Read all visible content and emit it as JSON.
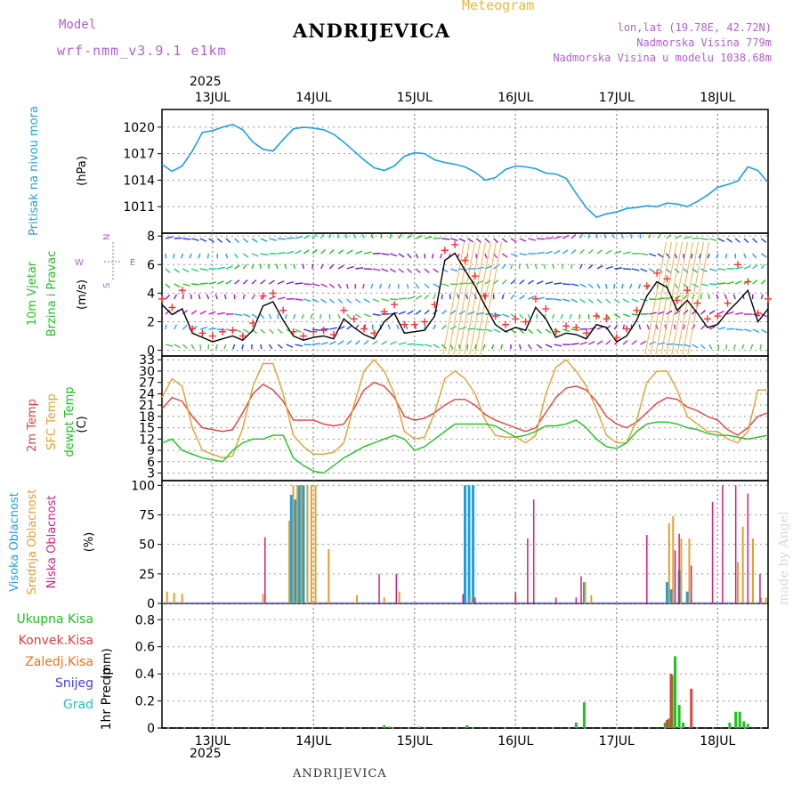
{
  "header": {
    "model_label": "Model",
    "model_name": "wrf-nmm_v3.9.1 e1km",
    "title": "ANDRIJEVICA",
    "subtitle": "Meteogram",
    "lonlat": "lon,lat (19.78E, 42.72N)",
    "altitude": "Nadmorska Visina 779m",
    "model_altitude": "Nadmorska Visina u modelu 1038.68m",
    "year_top": "2025",
    "year_bottom": "2025",
    "footer_station": "ANDRIJEVICA",
    "watermark": "made by Angel"
  },
  "colors": {
    "pressure": "#1ea0e0",
    "wind_speed": "#000000",
    "gust": "#ff3030",
    "t2m": "#e04040",
    "sfc": "#e0a030",
    "dewpt": "#20c020",
    "high_cloud": "#1ea0e0",
    "mid_cloud": "#e0a030",
    "low_cloud": "#d02080",
    "total_precip": "#20c020",
    "conv_precip": "#e04040",
    "frozen_precip": "#f07020",
    "snow": "#4040e0",
    "hail": "#20c0c0",
    "compass": "#b060d0"
  },
  "chart_data": [
    {
      "type": "line",
      "panel": "pressure",
      "ylabel": "Pritisak na nivou mora",
      "unit": "(hPa)",
      "x_ticks": [
        "13JUL",
        "14JUL",
        "15JUL",
        "16JUL",
        "17JUL",
        "18JUL"
      ],
      "x_range_days": [
        12.5,
        18.5
      ],
      "ylim": [
        1008,
        1022
      ],
      "yticks": [
        1011,
        1014,
        1017,
        1020
      ],
      "grid": true,
      "series": [
        {
          "x": [
            12.5,
            12.6,
            12.7,
            12.8,
            12.9,
            13.0,
            13.1,
            13.2,
            13.3,
            13.4,
            13.5,
            13.6,
            13.7,
            13.8,
            13.9,
            14.0,
            14.1,
            14.2,
            14.3,
            14.4,
            14.5,
            14.6,
            14.7,
            14.8,
            14.9,
            15.0,
            15.1,
            15.2,
            15.3,
            15.4,
            15.5,
            15.6,
            15.7,
            15.8,
            15.9,
            16.0,
            16.1,
            16.2,
            16.3,
            16.4,
            16.5,
            16.6,
            16.7,
            16.8,
            16.9,
            17.0,
            17.1,
            17.2,
            17.3,
            17.4,
            17.5,
            17.6,
            17.7,
            17.8,
            17.9,
            18.0,
            18.1,
            18.2,
            18.3,
            18.4,
            18.5
          ],
          "y": [
            1015.8,
            1015.0,
            1015.6,
            1017.3,
            1019.4,
            1019.6,
            1020.0,
            1020.3,
            1019.7,
            1018.3,
            1017.5,
            1017.3,
            1018.6,
            1019.8,
            1020.0,
            1019.9,
            1019.7,
            1019.2,
            1018.3,
            1017.3,
            1016.3,
            1015.4,
            1015.1,
            1015.6,
            1016.7,
            1017.1,
            1017.0,
            1016.3,
            1016.0,
            1015.8,
            1015.5,
            1014.9,
            1014.0,
            1014.3,
            1015.2,
            1015.6,
            1015.5,
            1015.3,
            1014.8,
            1014.7,
            1014.2,
            1012.5,
            1010.9,
            1009.8,
            1010.2,
            1010.4,
            1010.8,
            1010.9,
            1011.1,
            1011.0,
            1011.4,
            1011.3,
            1011.0,
            1011.6,
            1012.3,
            1013.2,
            1013.5,
            1013.9,
            1015.5,
            1015.1,
            1013.7
          ]
        }
      ]
    },
    {
      "type": "line",
      "panel": "wind",
      "ylabel": "10m Vjetar Brzina i Pravac",
      "unit": "(m/s)",
      "compass": {
        "n": "N",
        "e": "E",
        "w": "W",
        "s": "S"
      },
      "ylim": [
        -0.4,
        8.2
      ],
      "yticks": [
        0,
        2,
        4,
        6,
        8
      ],
      "series": [
        {
          "name": "speed",
          "x": [
            12.5,
            12.6,
            12.7,
            12.8,
            12.9,
            13.0,
            13.1,
            13.2,
            13.3,
            13.4,
            13.5,
            13.6,
            13.7,
            13.8,
            13.9,
            14.0,
            14.1,
            14.2,
            14.3,
            14.4,
            14.5,
            14.6,
            14.7,
            14.8,
            14.9,
            15.0,
            15.1,
            15.2,
            15.3,
            15.4,
            15.5,
            15.6,
            15.7,
            15.8,
            15.9,
            16.0,
            16.1,
            16.2,
            16.3,
            16.4,
            16.5,
            16.6,
            16.7,
            16.8,
            16.9,
            17.0,
            17.1,
            17.2,
            17.3,
            17.4,
            17.5,
            17.6,
            17.7,
            17.8,
            17.9,
            18.0,
            18.1,
            18.2,
            18.3,
            18.4,
            18.5
          ],
          "y": [
            3.2,
            2.5,
            2.9,
            1.2,
            0.9,
            0.6,
            0.8,
            1.0,
            0.7,
            1.4,
            3.1,
            3.4,
            2.1,
            1.0,
            0.7,
            0.9,
            1.0,
            0.8,
            2.2,
            1.6,
            1.1,
            0.8,
            2.0,
            2.6,
            1.2,
            1.3,
            1.4,
            2.4,
            6.3,
            6.8,
            5.6,
            4.5,
            3.1,
            1.8,
            1.3,
            1.6,
            1.4,
            3.0,
            2.2,
            0.9,
            1.2,
            1.1,
            0.8,
            1.8,
            1.6,
            0.6,
            1.0,
            2.1,
            3.8,
            4.8,
            4.4,
            2.8,
            3.5,
            2.6,
            1.6,
            1.8,
            2.7,
            3.4,
            4.2,
            2.0,
            2.9
          ]
        },
        {
          "name": "gust",
          "x": [
            12.5,
            12.6,
            12.7,
            12.8,
            12.9,
            13.0,
            13.1,
            13.2,
            13.3,
            13.4,
            13.5,
            13.6,
            13.7,
            13.8,
            13.9,
            14.0,
            14.1,
            14.2,
            14.3,
            14.4,
            14.5,
            14.6,
            14.7,
            14.8,
            14.9,
            15.0,
            15.1,
            15.2,
            15.3,
            15.4,
            15.5,
            15.6,
            15.7,
            15.8,
            15.9,
            16.0,
            16.1,
            16.2,
            16.3,
            16.4,
            16.5,
            16.6,
            16.7,
            16.8,
            16.9,
            17.0,
            17.1,
            17.2,
            17.3,
            17.4,
            17.5,
            17.6,
            17.7,
            17.8,
            17.9,
            18.0,
            18.1,
            18.2,
            18.3,
            18.4,
            18.5
          ],
          "y": [
            3.6,
            3.0,
            4.2,
            1.5,
            1.2,
            1.0,
            1.3,
            1.4,
            1.0,
            1.9,
            3.8,
            4.0,
            2.8,
            1.3,
            1.0,
            1.3,
            1.4,
            1.1,
            2.8,
            2.2,
            1.5,
            1.2,
            2.7,
            3.2,
            1.8,
            1.8,
            2.0,
            3.2,
            7.0,
            7.4,
            6.3,
            5.2,
            3.8,
            2.4,
            1.8,
            2.2,
            2.0,
            3.6,
            2.9,
            1.3,
            1.7,
            1.6,
            1.2,
            2.4,
            2.2,
            0.9,
            1.5,
            2.8,
            4.5,
            5.4,
            5.0,
            3.5,
            4.2,
            3.3,
            2.2,
            2.4,
            3.3,
            6.0,
            4.8,
            2.6,
            3.6
          ]
        }
      ]
    },
    {
      "type": "line",
      "panel": "temperature",
      "ylabel": [
        "2m Temp",
        "SFC Temp",
        "dewpt Temp"
      ],
      "unit": "(C)",
      "ylim": [
        1,
        34
      ],
      "yticks": [
        3,
        6,
        9,
        12,
        15,
        18,
        21,
        24,
        27,
        30,
        33
      ],
      "series": [
        {
          "name": "2m Temp",
          "x": [
            12.5,
            12.6,
            12.7,
            12.8,
            12.9,
            13.0,
            13.1,
            13.2,
            13.3,
            13.4,
            13.5,
            13.6,
            13.7,
            13.8,
            13.9,
            14.0,
            14.1,
            14.2,
            14.3,
            14.4,
            14.5,
            14.6,
            14.7,
            14.8,
            14.9,
            15.0,
            15.1,
            15.2,
            15.3,
            15.4,
            15.5,
            15.6,
            15.7,
            15.8,
            15.9,
            16.0,
            16.1,
            16.2,
            16.3,
            16.4,
            16.5,
            16.6,
            16.7,
            16.8,
            16.9,
            17.0,
            17.1,
            17.2,
            17.3,
            17.4,
            17.5,
            17.6,
            17.7,
            17.8,
            17.9,
            18.0,
            18.1,
            18.2,
            18.3,
            18.4,
            18.5
          ],
          "y": [
            20,
            23,
            22,
            18,
            15,
            14.5,
            14,
            14.5,
            19,
            24,
            26.5,
            25,
            22,
            17,
            17,
            17,
            16,
            15.5,
            16,
            20,
            25,
            27,
            26,
            23,
            18,
            17,
            17.5,
            19,
            21,
            22.5,
            22.5,
            21,
            18.5,
            17,
            16,
            15,
            14,
            15,
            19,
            23,
            25.5,
            26,
            25,
            22,
            18,
            16,
            15,
            16.5,
            19,
            21.5,
            23,
            22.5,
            20.5,
            19.5,
            18,
            17,
            14.5,
            13,
            15,
            18,
            19
          ]
        },
        {
          "name": "SFC Temp",
          "x": [
            12.5,
            12.6,
            12.7,
            12.8,
            12.9,
            13.0,
            13.1,
            13.2,
            13.3,
            13.4,
            13.5,
            13.6,
            13.7,
            13.8,
            13.9,
            14.0,
            14.1,
            14.2,
            14.3,
            14.4,
            14.5,
            14.6,
            14.7,
            14.8,
            14.9,
            15.0,
            15.1,
            15.2,
            15.3,
            15.4,
            15.5,
            15.6,
            15.7,
            15.8,
            15.9,
            16.0,
            16.1,
            16.2,
            16.3,
            16.4,
            16.5,
            16.6,
            16.7,
            16.8,
            16.9,
            17.0,
            17.1,
            17.2,
            17.3,
            17.4,
            17.5,
            17.6,
            17.7,
            17.8,
            17.9,
            18.0,
            18.1,
            18.2,
            18.3,
            18.4,
            18.5
          ],
          "y": [
            23,
            28,
            26,
            15,
            9,
            8,
            7,
            7.5,
            15,
            26,
            32,
            32,
            24,
            13,
            10,
            8,
            8,
            8.5,
            11,
            21,
            30,
            33,
            30,
            24,
            14,
            12,
            12.5,
            19,
            28,
            30,
            28,
            24,
            17,
            13,
            12.5,
            12.5,
            11,
            13,
            24,
            31,
            33,
            30,
            26,
            20,
            13,
            11,
            11,
            17,
            27,
            30,
            30,
            25,
            18,
            16,
            14,
            14,
            12,
            11,
            14,
            25,
            25
          ]
        },
        {
          "name": "dewpt Temp",
          "x": [
            12.5,
            12.6,
            12.7,
            12.8,
            12.9,
            13.0,
            13.1,
            13.2,
            13.3,
            13.4,
            13.5,
            13.6,
            13.7,
            13.8,
            13.9,
            14.0,
            14.1,
            14.2,
            14.3,
            14.4,
            14.5,
            14.6,
            14.7,
            14.8,
            14.9,
            15.0,
            15.1,
            15.2,
            15.3,
            15.4,
            15.5,
            15.6,
            15.7,
            15.8,
            15.9,
            16.0,
            16.1,
            16.2,
            16.3,
            16.4,
            16.5,
            16.6,
            16.7,
            16.8,
            16.9,
            17.0,
            17.1,
            17.2,
            17.3,
            17.4,
            17.5,
            17.6,
            17.7,
            17.8,
            17.9,
            18.0,
            18.1,
            18.2,
            18.3,
            18.4,
            18.5
          ],
          "y": [
            11,
            12,
            9,
            8,
            7,
            6.5,
            6,
            9,
            11,
            12,
            12,
            13,
            13,
            7,
            5,
            3.5,
            3,
            5,
            7,
            8.5,
            10,
            11,
            12,
            13,
            12,
            9,
            10,
            12,
            14,
            16,
            16,
            16,
            16,
            15.5,
            14,
            12.5,
            13,
            14,
            15.5,
            15.5,
            16,
            17,
            15,
            12,
            10,
            9.5,
            11,
            14,
            16,
            16.5,
            16.5,
            16,
            15,
            14.5,
            13.5,
            13,
            13,
            12.5,
            12,
            12.5,
            13
          ]
        }
      ]
    },
    {
      "type": "bar",
      "panel": "clouds",
      "ylabel": [
        "Visoka Oblacnost",
        "Srednja Oblacnost",
        "Niska Oblacnost"
      ],
      "unit": "(%)",
      "ylim": [
        0,
        104
      ],
      "yticks": [
        0,
        25,
        50,
        75,
        100
      ],
      "series": [
        {
          "name": "Visoka Oblacnost",
          "x": [
            13.78,
            13.82,
            13.86,
            13.9,
            15.5,
            15.54,
            15.58,
            16.68,
            17.5,
            17.54,
            17.62,
            17.7
          ],
          "y": [
            92,
            88,
            100,
            100,
            100,
            100,
            100,
            18,
            18,
            12,
            28,
            10
          ]
        },
        {
          "name": "Srednja Oblacnost",
          "x": [
            12.55,
            12.62,
            12.7,
            13.5,
            13.76,
            13.8,
            13.84,
            13.88,
            13.94,
            13.98,
            14.02,
            14.15,
            14.43,
            14.7,
            14.85,
            15.55,
            16.0,
            16.69,
            16.75,
            17.52,
            17.56,
            17.64,
            17.72,
            18.2,
            18.25,
            18.35,
            18.43,
            18.48
          ],
          "y": [
            10,
            9,
            8,
            8,
            70,
            100,
            100,
            100,
            100,
            100,
            100,
            46,
            7,
            5,
            10,
            6,
            7,
            18,
            7,
            68,
            74,
            55,
            55,
            35,
            65,
            55,
            5,
            5
          ]
        },
        {
          "name": "Niska Oblacnost",
          "x": [
            13.52,
            14.65,
            14.82,
            15.48,
            15.6,
            16.0,
            16.12,
            16.18,
            16.4,
            16.6,
            16.65,
            17.3,
            17.58,
            17.62,
            17.74,
            17.95,
            18.05,
            18.18,
            18.3,
            18.42
          ],
          "y": [
            56,
            25,
            25,
            8,
            5,
            10,
            55,
            88,
            5,
            5,
            23,
            58,
            45,
            59,
            32,
            86,
            100,
            100,
            93,
            25
          ]
        }
      ]
    },
    {
      "type": "bar",
      "panel": "precip",
      "ylabel": "1hr Precip",
      "unit": "(mm)",
      "legend": [
        "Ukupna Kisa",
        "Konvek.Kisa",
        "Zaledj.Kisa",
        "Snijeg",
        "Grad"
      ],
      "ylim": [
        0,
        0.92
      ],
      "yticks": [
        0,
        0.2,
        0.4,
        0.6,
        0.8
      ],
      "series": [
        {
          "name": "Ukupna Kisa",
          "x": [
            14.7,
            14.75,
            15.05,
            15.52,
            16.6,
            16.68,
            17.48,
            17.52,
            17.55,
            17.58,
            17.62,
            17.66,
            18.12,
            18.18,
            18.22,
            18.26,
            18.3
          ],
          "y": [
            0.02,
            0.01,
            0.01,
            0.02,
            0.04,
            0.19,
            0.04,
            0.07,
            0.39,
            0.53,
            0.17,
            0.04,
            0.04,
            0.12,
            0.12,
            0.05,
            0.03
          ]
        },
        {
          "name": "Konvek.Kisa",
          "x": [
            17.5,
            17.54,
            17.74
          ],
          "y": [
            0.06,
            0.4,
            0.29
          ]
        }
      ]
    }
  ]
}
